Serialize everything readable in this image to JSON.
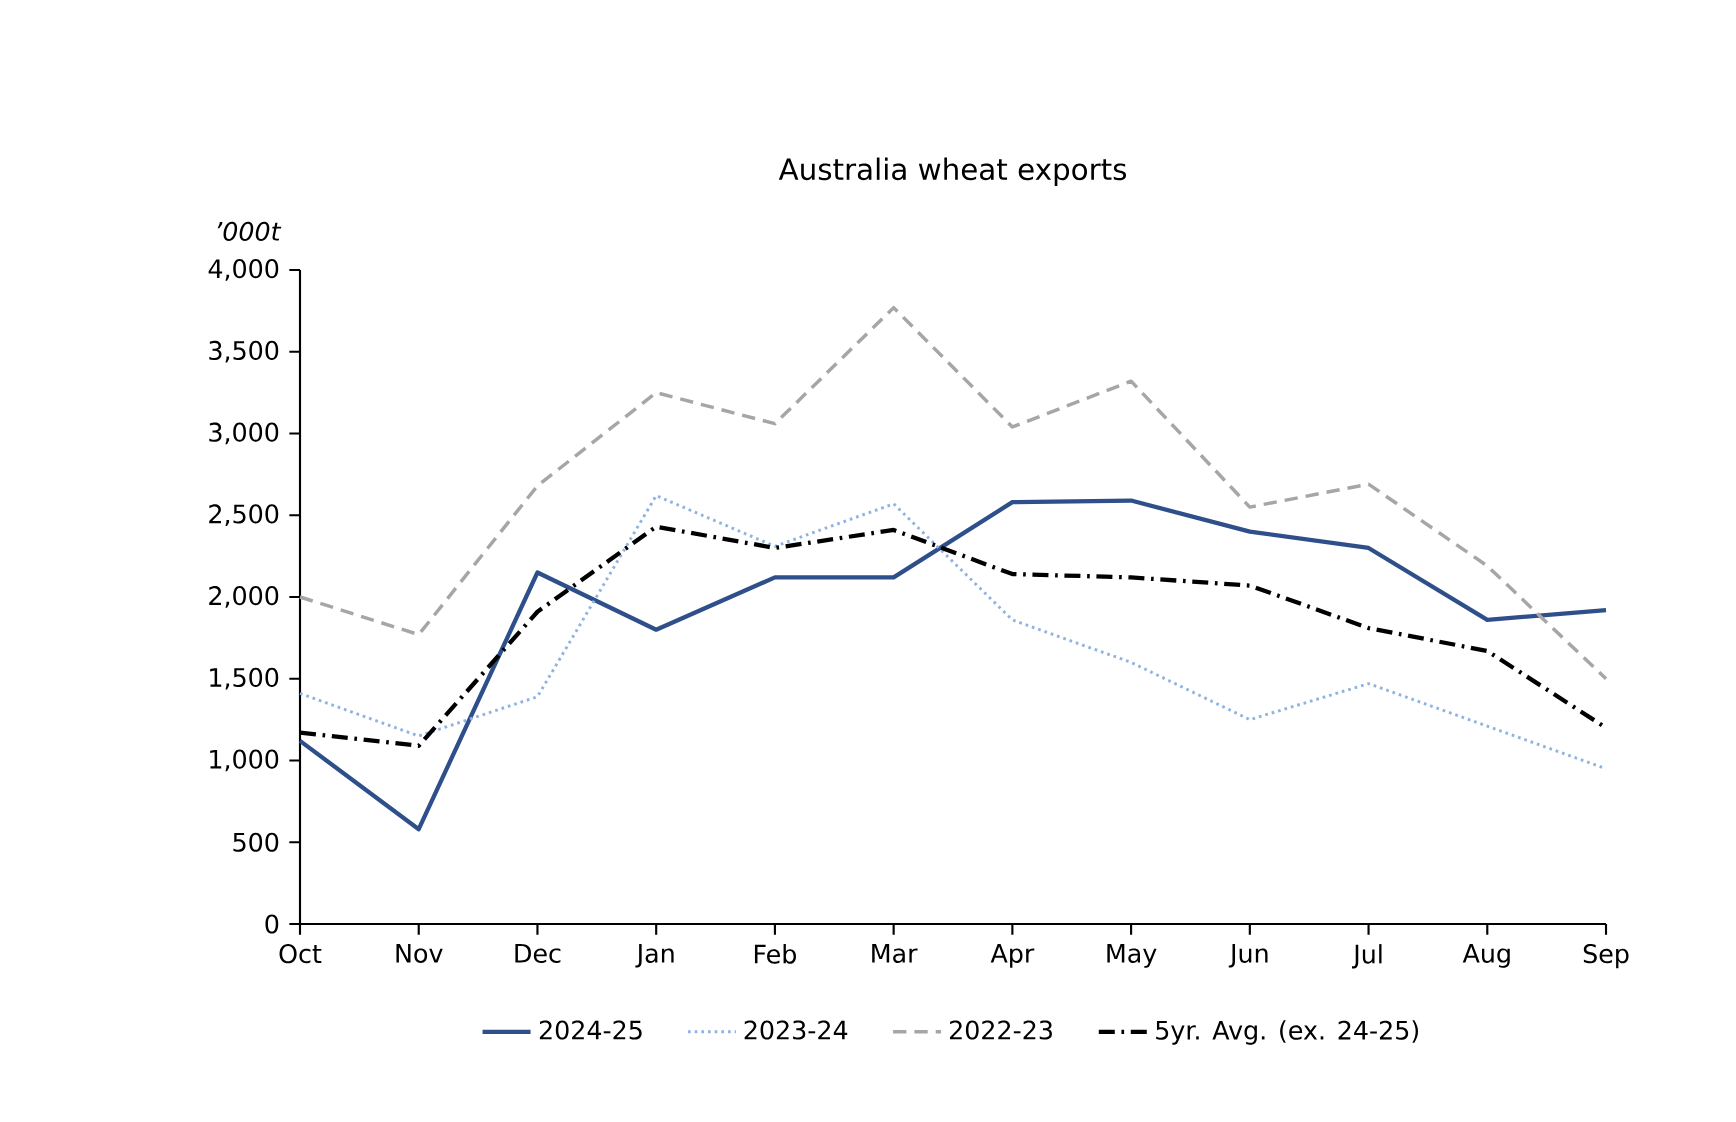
{
  "chart_data": {
    "type": "line",
    "title": "Australia wheat exports",
    "ylabel": "*’000t*",
    "categories": [
      "Oct",
      "Nov",
      "Dec",
      "Jan",
      "Feb",
      "Mar",
      "Apr",
      "May",
      "Jun",
      "Jul",
      "Aug",
      "Sep"
    ],
    "series": [
      {
        "name": "2024-25",
        "color": "#2e4f8a",
        "line_style": "solid",
        "values": [
          1120,
          580,
          2150,
          1800,
          2120,
          2120,
          2580,
          2590,
          2400,
          2300,
          1860,
          1920
        ]
      },
      {
        "name": "2023-24",
        "color": "#8fb3e0",
        "line_style": "dotted",
        "values": [
          1410,
          1150,
          1390,
          2620,
          2310,
          2570,
          1860,
          1600,
          1250,
          1470,
          1210,
          950
        ]
      },
      {
        "name": "2022-23",
        "color": "#a6a6a6",
        "line_style": "dashed",
        "values": [
          2000,
          1770,
          2680,
          3250,
          3060,
          3770,
          3040,
          3320,
          2550,
          2690,
          2190,
          1500
        ]
      },
      {
        "name": "5yr. Avg. (ex. 24-25)",
        "color": "#000000",
        "line_style": "dashdot",
        "values": [
          1170,
          1090,
          1910,
          2430,
          2300,
          2410,
          2140,
          2120,
          2070,
          1810,
          1670,
          1200
        ]
      }
    ],
    "ylim": [
      0,
      4000
    ],
    "yticks": [
      0,
      500,
      {
        "value": 1000,
        "label": "1,000"
      },
      {
        "value": 1500,
        "label": "1,500"
      },
      {
        "value": 2000,
        "label": "2,000"
      },
      {
        "value": 2500,
        "label": "2,500"
      },
      {
        "value": 3000,
        "label": "3,000"
      },
      {
        "value": 3500,
        "label": "3,500"
      },
      {
        "value": 4000,
        "label": "4,000"
      }
    ],
    "grid": false,
    "legend": "bottom",
    "marker": "none"
  }
}
